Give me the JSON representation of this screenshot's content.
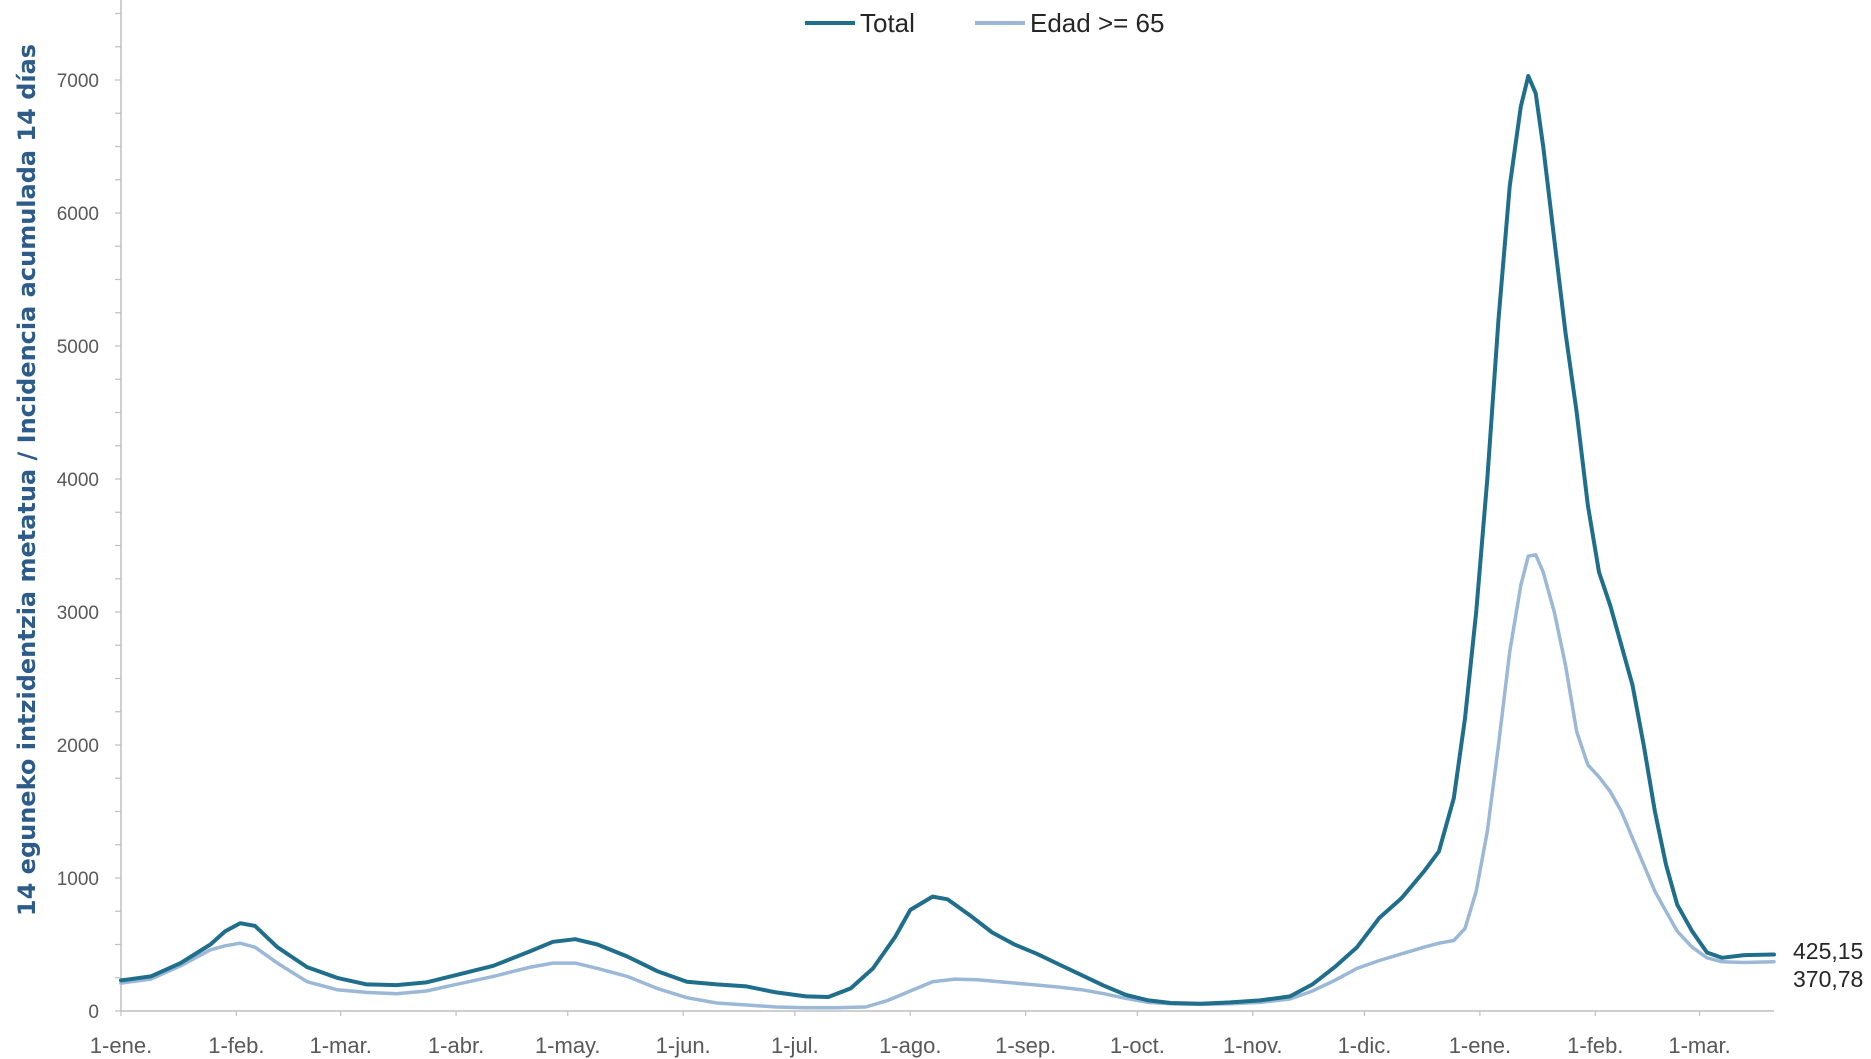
{
  "chart_data": {
    "type": "line",
    "ylabel": "14 eguneko intzidentzia metatua / Incidencia acumulada 14 días",
    "ylim": [
      0,
      7000
    ],
    "yticks": [
      0,
      1000,
      2000,
      3000,
      4000,
      5000,
      6000,
      7000
    ],
    "xrange": [
      0,
      444
    ],
    "month_ticks": [
      {
        "label": "1-ene.",
        "day": 0
      },
      {
        "label": "1-feb.",
        "day": 31
      },
      {
        "label": "1-mar.",
        "day": 59
      },
      {
        "label": "1-abr.",
        "day": 90
      },
      {
        "label": "1-may.",
        "day": 120
      },
      {
        "label": "1-jun.",
        "day": 151
      },
      {
        "label": "1-jul.",
        "day": 181
      },
      {
        "label": "1-ago.",
        "day": 212
      },
      {
        "label": "1-sep.",
        "day": 243
      },
      {
        "label": "1-oct.",
        "day": 273
      },
      {
        "label": "1-nov.",
        "day": 304
      },
      {
        "label": "1-dic.",
        "day": 334
      },
      {
        "label": "1-ene.",
        "day": 365
      },
      {
        "label": "1-feb.",
        "day": 396
      },
      {
        "label": "1-mar.",
        "day": 424
      }
    ],
    "legend": {
      "placement": "top-center"
    },
    "series": [
      {
        "name": "Total",
        "color": "#1f6e8c",
        "end_label": "425,15",
        "points": [
          [
            0,
            230
          ],
          [
            8,
            260
          ],
          [
            16,
            360
          ],
          [
            24,
            500
          ],
          [
            28,
            600
          ],
          [
            32,
            660
          ],
          [
            36,
            640
          ],
          [
            42,
            480
          ],
          [
            50,
            330
          ],
          [
            58,
            250
          ],
          [
            66,
            200
          ],
          [
            74,
            195
          ],
          [
            82,
            215
          ],
          [
            90,
            270
          ],
          [
            100,
            340
          ],
          [
            110,
            450
          ],
          [
            116,
            520
          ],
          [
            122,
            540
          ],
          [
            128,
            500
          ],
          [
            136,
            410
          ],
          [
            144,
            300
          ],
          [
            152,
            220
          ],
          [
            160,
            200
          ],
          [
            168,
            185
          ],
          [
            176,
            140
          ],
          [
            184,
            110
          ],
          [
            190,
            105
          ],
          [
            196,
            170
          ],
          [
            202,
            320
          ],
          [
            208,
            560
          ],
          [
            212,
            760
          ],
          [
            218,
            860
          ],
          [
            222,
            840
          ],
          [
            228,
            720
          ],
          [
            234,
            590
          ],
          [
            240,
            500
          ],
          [
            246,
            430
          ],
          [
            252,
            350
          ],
          [
            258,
            270
          ],
          [
            264,
            190
          ],
          [
            270,
            120
          ],
          [
            276,
            80
          ],
          [
            282,
            60
          ],
          [
            290,
            55
          ],
          [
            298,
            65
          ],
          [
            306,
            80
          ],
          [
            314,
            110
          ],
          [
            320,
            200
          ],
          [
            326,
            330
          ],
          [
            332,
            480
          ],
          [
            338,
            700
          ],
          [
            344,
            850
          ],
          [
            350,
            1050
          ],
          [
            354,
            1200
          ],
          [
            358,
            1600
          ],
          [
            361,
            2200
          ],
          [
            364,
            3000
          ],
          [
            367,
            4000
          ],
          [
            370,
            5200
          ],
          [
            373,
            6200
          ],
          [
            376,
            6800
          ],
          [
            378,
            7030
          ],
          [
            380,
            6900
          ],
          [
            382,
            6500
          ],
          [
            385,
            5800
          ],
          [
            388,
            5100
          ],
          [
            391,
            4500
          ],
          [
            394,
            3800
          ],
          [
            397,
            3300
          ],
          [
            400,
            3050
          ],
          [
            403,
            2750
          ],
          [
            406,
            2450
          ],
          [
            409,
            2000
          ],
          [
            412,
            1500
          ],
          [
            415,
            1100
          ],
          [
            418,
            800
          ],
          [
            422,
            600
          ],
          [
            426,
            440
          ],
          [
            430,
            400
          ],
          [
            436,
            420
          ],
          [
            444,
            425.15
          ]
        ]
      },
      {
        "name": "Edad >= 65",
        "color": "#9bb8d7",
        "end_label": "370,78",
        "points": [
          [
            0,
            210
          ],
          [
            8,
            240
          ],
          [
            16,
            340
          ],
          [
            24,
            460
          ],
          [
            28,
            490
          ],
          [
            32,
            510
          ],
          [
            36,
            480
          ],
          [
            42,
            360
          ],
          [
            50,
            220
          ],
          [
            58,
            160
          ],
          [
            66,
            140
          ],
          [
            74,
            130
          ],
          [
            82,
            150
          ],
          [
            90,
            200
          ],
          [
            100,
            260
          ],
          [
            110,
            330
          ],
          [
            116,
            360
          ],
          [
            122,
            360
          ],
          [
            128,
            320
          ],
          [
            136,
            260
          ],
          [
            144,
            170
          ],
          [
            152,
            100
          ],
          [
            160,
            60
          ],
          [
            168,
            45
          ],
          [
            176,
            30
          ],
          [
            184,
            25
          ],
          [
            192,
            25
          ],
          [
            200,
            30
          ],
          [
            206,
            80
          ],
          [
            212,
            150
          ],
          [
            218,
            220
          ],
          [
            224,
            240
          ],
          [
            230,
            235
          ],
          [
            236,
            220
          ],
          [
            244,
            200
          ],
          [
            252,
            180
          ],
          [
            258,
            160
          ],
          [
            264,
            130
          ],
          [
            270,
            95
          ],
          [
            276,
            65
          ],
          [
            282,
            55
          ],
          [
            290,
            50
          ],
          [
            298,
            55
          ],
          [
            306,
            65
          ],
          [
            314,
            90
          ],
          [
            320,
            150
          ],
          [
            326,
            230
          ],
          [
            332,
            320
          ],
          [
            338,
            380
          ],
          [
            344,
            430
          ],
          [
            350,
            480
          ],
          [
            354,
            510
          ],
          [
            358,
            530
          ],
          [
            361,
            620
          ],
          [
            364,
            900
          ],
          [
            367,
            1350
          ],
          [
            370,
            2000
          ],
          [
            373,
            2700
          ],
          [
            376,
            3200
          ],
          [
            378,
            3420
          ],
          [
            380,
            3430
          ],
          [
            382,
            3300
          ],
          [
            385,
            3000
          ],
          [
            388,
            2600
          ],
          [
            391,
            2100
          ],
          [
            394,
            1850
          ],
          [
            397,
            1760
          ],
          [
            400,
            1650
          ],
          [
            403,
            1500
          ],
          [
            406,
            1300
          ],
          [
            409,
            1100
          ],
          [
            412,
            900
          ],
          [
            415,
            750
          ],
          [
            418,
            600
          ],
          [
            422,
            480
          ],
          [
            426,
            400
          ],
          [
            430,
            370
          ],
          [
            436,
            365
          ],
          [
            444,
            370.78
          ]
        ]
      }
    ]
  }
}
